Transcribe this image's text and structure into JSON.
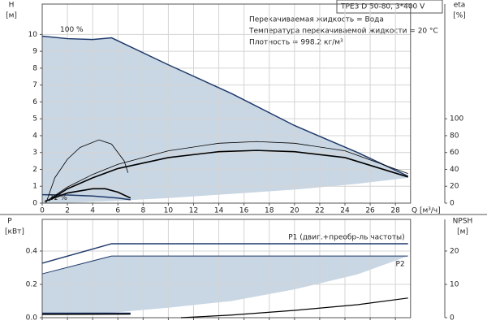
{
  "chart_data": [
    {
      "type": "line",
      "title": "TPE3 D 50-80, 3*400 V",
      "notes": [
        "Перекачиваемая жидкость = Вода",
        "Температура перекачиваемой жидкости = 20 °C",
        "Плотность = 998.2 кг/м³"
      ],
      "ylabel": "H",
      "yunit": "[м]",
      "y2label": "eta",
      "y2unit": "[%]",
      "xlabel": "Q [м³/ч]",
      "xlim": [
        0,
        29.2
      ],
      "xticks": [
        0,
        2,
        4,
        6,
        8,
        10,
        12,
        14,
        16,
        18,
        20,
        22,
        24,
        26,
        28
      ],
      "ylim": [
        0,
        11.8
      ],
      "yticks": [
        0,
        1,
        2,
        3,
        4,
        5,
        6,
        7,
        8,
        9,
        10
      ],
      "y2lim": [
        0,
        236
      ],
      "y2ticks": [
        0,
        20,
        40,
        60,
        80,
        100
      ],
      "grid": true,
      "series": [
        {
          "name": "100 %",
          "color": "#1f3a6b",
          "fill": "#c9d6e3",
          "line_width": 1.5,
          "x": [
            0,
            2,
            4,
            5.5,
            10,
            15,
            20,
            25,
            29
          ],
          "values": [
            9.9,
            9.75,
            9.7,
            9.8,
            8.2,
            6.5,
            4.6,
            3.0,
            1.6
          ],
          "low": [
            0,
            0.02,
            0.08,
            0.12,
            0.3,
            0.55,
            0.8,
            1.15,
            1.5
          ]
        },
        {
          "name": "21 %",
          "color": "#1f3a6b",
          "line_width": 1.5,
          "x": [
            0,
            2,
            4,
            6,
            7
          ],
          "values": [
            0.5,
            0.48,
            0.42,
            0.3,
            0.2
          ]
        },
        {
          "axis": "y2",
          "color": "#000000",
          "line_width": 1.6,
          "x": [
            0.2,
            2,
            4,
            5,
            6,
            7
          ],
          "values": [
            2,
            12,
            17,
            17,
            13,
            6
          ]
        },
        {
          "axis": "y2",
          "color": "#000000",
          "line_width": 0.8,
          "x": [
            0.3,
            1,
            2,
            3,
            4.5,
            5.5,
            6.5,
            6.8
          ],
          "values": [
            0,
            30,
            52,
            66,
            75,
            70,
            50,
            36
          ]
        },
        {
          "axis": "y2",
          "color": "#000000",
          "line_width": 1.6,
          "x": [
            0.5,
            2,
            4,
            6,
            10,
            14,
            17,
            20,
            24,
            29
          ],
          "values": [
            3,
            17,
            30,
            41,
            54,
            61,
            62.5,
            61,
            54,
            31
          ]
        },
        {
          "axis": "y2",
          "color": "#000000",
          "line_width": 0.8,
          "x": [
            0.5,
            2,
            4,
            6,
            10,
            14,
            17,
            20,
            24,
            29
          ],
          "values": [
            4,
            19,
            34,
            46,
            62,
            71,
            73,
            71,
            62,
            35
          ]
        }
      ]
    },
    {
      "type": "line",
      "ylabel": "P",
      "yunit": "[кВт]",
      "y2label": "NPSH",
      "y2unit": "[м]",
      "xlim": [
        0,
        29.2
      ],
      "xticks": [
        0,
        2,
        4,
        6,
        8,
        10,
        12,
        14,
        16,
        18,
        20,
        22,
        24,
        26,
        28
      ],
      "ylim": [
        0,
        0.59
      ],
      "yticks": [
        {
          "value": 0,
          "label": "0.0"
        },
        0.2,
        0.4
      ],
      "y2lim": [
        0,
        29.5
      ],
      "y2ticks": [
        0,
        10,
        20
      ],
      "grid": true,
      "series": [
        {
          "name": "P2",
          "color": "#1f3a6b",
          "fill": "#c9d6e3",
          "line_width": 1,
          "x": [
            0,
            5.5,
            10,
            15,
            20,
            25,
            29
          ],
          "values": [
            0.263,
            0.37,
            0.37,
            0.37,
            0.37,
            0.37,
            0.37
          ],
          "low": [
            0.02,
            0.03,
            0.06,
            0.1,
            0.17,
            0.26,
            0.37
          ]
        },
        {
          "name": "P1 (двиг.+преобр-ль частоты)",
          "color": "#1f3a6b",
          "line_width": 1.5,
          "x": [
            0,
            5.5,
            29
          ],
          "values": [
            0.327,
            0.444,
            0.444
          ]
        },
        {
          "color": "#1f3a6b",
          "line_width": 1.5,
          "x": [
            0,
            7
          ],
          "values": [
            0.027,
            0.027
          ]
        },
        {
          "color": "#000000",
          "line_width": 1.5,
          "x": [
            0,
            7
          ],
          "values": [
            0.02,
            0.022
          ]
        },
        {
          "axis": "y2",
          "color": "#000000",
          "line_width": 1.2,
          "x": [
            11,
            15,
            20,
            25,
            29
          ],
          "values": [
            0,
            0.8,
            2.2,
            3.9,
            5.9
          ]
        }
      ]
    }
  ]
}
